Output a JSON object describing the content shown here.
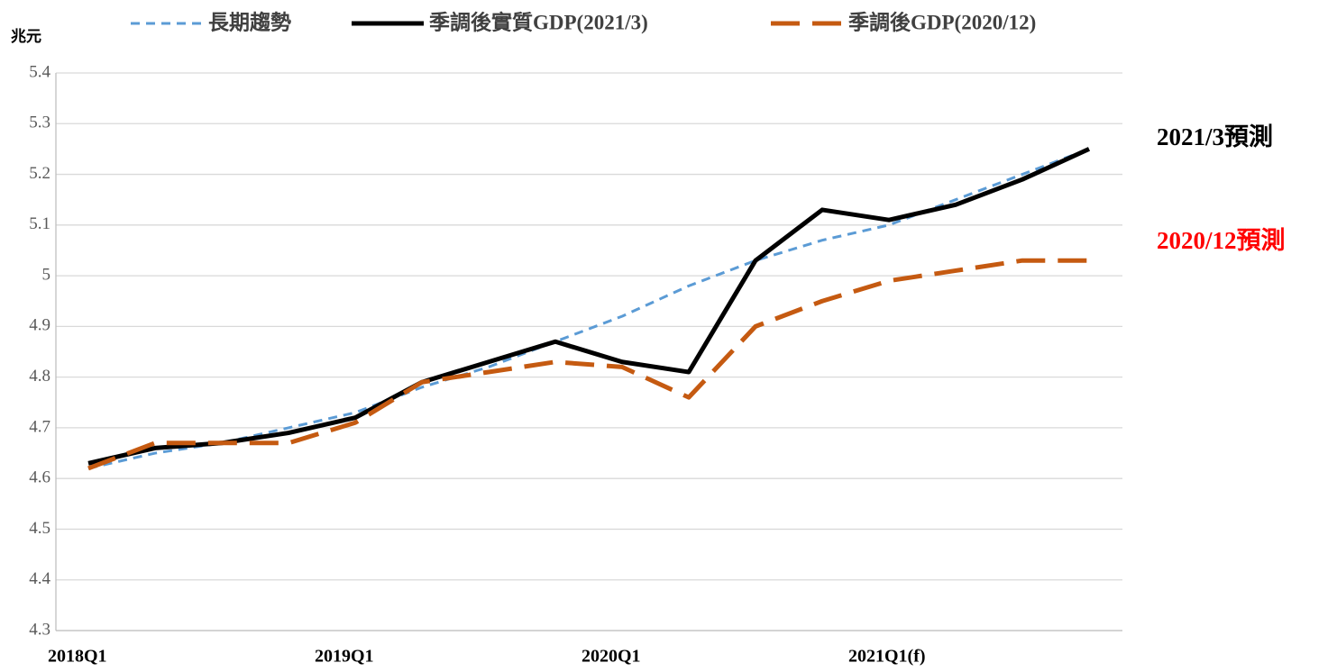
{
  "chart_data": {
    "type": "line",
    "y_label": "兆元",
    "categories": [
      "2018Q1",
      null,
      null,
      null,
      "2019Q1",
      null,
      null,
      null,
      "2020Q1",
      null,
      null,
      null,
      "2021Q1(f)",
      null,
      null,
      null
    ],
    "series": [
      {
        "name": "長期趨勢",
        "color": "#5b9bd5",
        "style": "dashed",
        "values": [
          4.62,
          4.65,
          4.67,
          4.7,
          4.73,
          4.78,
          4.82,
          4.87,
          4.92,
          4.98,
          5.03,
          5.07,
          5.1,
          5.15,
          5.2,
          5.25
        ]
      },
      {
        "name": "季調後實質GDP(2021/3)",
        "color": "#000000",
        "style": "solid",
        "values": [
          4.63,
          4.66,
          4.67,
          4.69,
          4.72,
          4.79,
          4.83,
          4.87,
          4.83,
          4.81,
          5.03,
          5.13,
          5.11,
          5.14,
          5.19,
          5.25
        ]
      },
      {
        "name": "季調後GDP(2020/12)",
        "color": "#c55a11",
        "style": "longdash",
        "values": [
          4.62,
          4.67,
          4.67,
          4.67,
          4.71,
          4.79,
          4.81,
          4.83,
          4.82,
          4.76,
          4.9,
          4.95,
          4.99,
          5.01,
          5.03,
          5.03
        ]
      }
    ],
    "annotations": [
      {
        "text": "2021/3預測",
        "color": "#000000"
      },
      {
        "text": "2020/12預測",
        "color": "#ff0000"
      }
    ],
    "ylim": [
      4.3,
      5.4
    ],
    "yticks": [
      4.3,
      4.4,
      4.5,
      4.6,
      4.7,
      4.8,
      4.9,
      5,
      5.1,
      5.2,
      5.3,
      5.4
    ],
    "grid": true,
    "legend": "top"
  }
}
